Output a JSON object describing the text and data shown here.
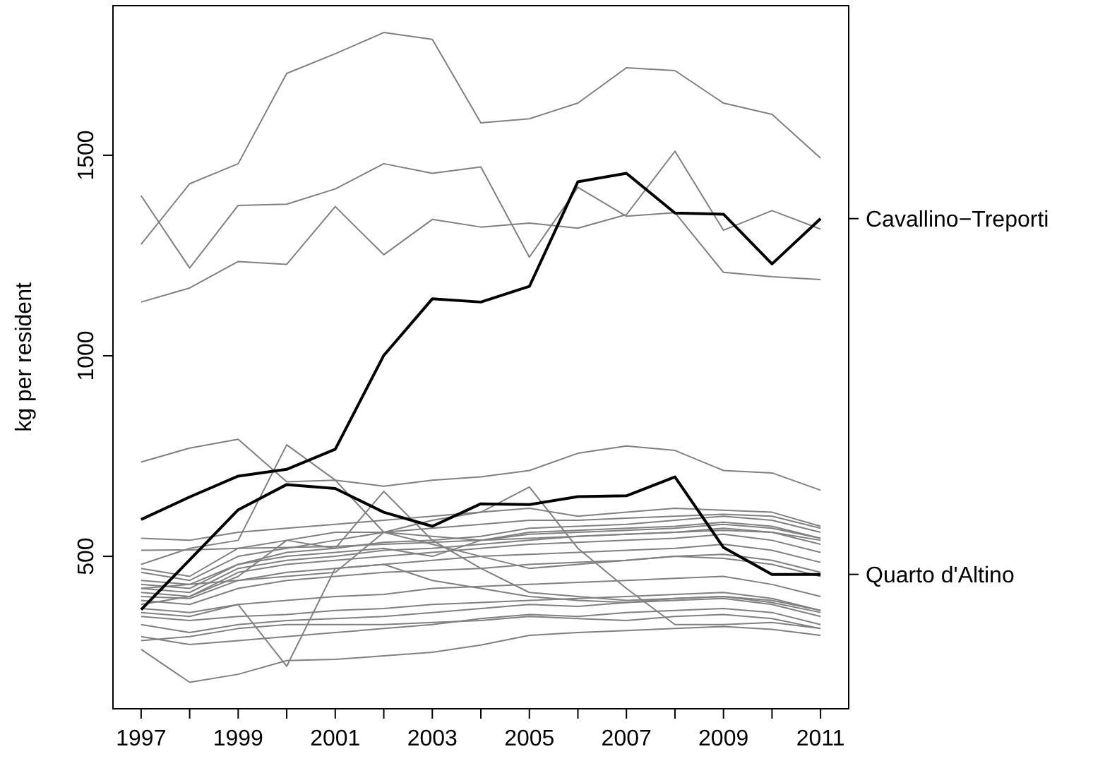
{
  "chart_data": {
    "type": "line",
    "ylabel": "kg per resident",
    "x": [
      1997,
      1998,
      1999,
      2000,
      2001,
      2002,
      2003,
      2004,
      2005,
      2006,
      2007,
      2008,
      2009,
      2010,
      2011
    ],
    "xlim": [
      1996.42,
      2011.58
    ],
    "ylim": [
      120,
      1873
    ],
    "xticks": [
      1997,
      {
        "value": 1998,
        "label": null
      },
      1999,
      {
        "value": 2000,
        "label": null
      },
      2001,
      {
        "value": 2002,
        "label": null
      },
      2003,
      {
        "value": 2004,
        "label": null
      },
      2005,
      {
        "value": 2006,
        "label": null
      },
      2007,
      {
        "value": 2008,
        "label": null
      },
      2009,
      {
        "value": 2010,
        "label": null
      },
      2011
    ],
    "yticks": [
      500,
      1000,
      1500
    ],
    "grid": false,
    "legend": "right",
    "marker": "none",
    "line_style": "solid",
    "series": [
      {
        "color": "#808080",
        "values": [
          1278,
          1429,
          1479,
          1704,
          1753,
          1806,
          1789,
          1581,
          1591,
          1630,
          1718,
          1711,
          1630,
          1602,
          1493
        ]
      },
      {
        "color": "#808080",
        "values": [
          1399,
          1219,
          1375,
          1378,
          1416,
          1479,
          1455,
          1471,
          1246,
          1420,
          1348,
          1357,
          1208,
          1197,
          1190
        ]
      },
      {
        "color": "#808080",
        "values": [
          1134,
          1169,
          1235,
          1228,
          1372,
          1252,
          1340,
          1321,
          1331,
          1318,
          1352,
          1510,
          1313,
          1362,
          1316
        ]
      },
      {
        "color": "#808080",
        "values": [
          735,
          770,
          792,
          686,
          690,
          675,
          690,
          698,
          714,
          757,
          775,
          764,
          714,
          708,
          665
        ]
      },
      {
        "color": "#808080",
        "values": [
          268,
          186,
          206,
          240,
          243,
          252,
          261,
          279,
          303,
          310,
          315,
          320,
          325,
          318,
          303
        ]
      },
      {
        "color": "#808080",
        "values": [
          300,
          280,
          290,
          300,
          310,
          320,
          330,
          345,
          355,
          350,
          360,
          365,
          370,
          360,
          330
        ]
      },
      {
        "color": "#808080",
        "values": [
          330,
          310,
          330,
          340,
          345,
          350,
          360,
          370,
          380,
          375,
          385,
          390,
          395,
          380,
          350
        ]
      },
      {
        "color": "#808080",
        "values": [
          350,
          340,
          350,
          355,
          365,
          370,
          380,
          385,
          390,
          395,
          400,
          405,
          410,
          395,
          365
        ]
      },
      {
        "color": "#808080",
        "values": [
          370,
          360,
          380,
          390,
          400,
          405,
          420,
          425,
          430,
          435,
          440,
          445,
          450,
          430,
          400
        ]
      },
      {
        "color": "#808080",
        "values": [
          390,
          380,
          420,
          440,
          450,
          460,
          465,
          470,
          480,
          485,
          490,
          500,
          505,
          490,
          460
        ]
      },
      {
        "color": "#808080",
        "values": [
          400,
          395,
          440,
          460,
          470,
          480,
          490,
          500,
          505,
          510,
          515,
          520,
          530,
          515,
          485
        ]
      },
      {
        "color": "#808080",
        "values": [
          410,
          400,
          460,
          480,
          490,
          500,
          510,
          520,
          530,
          535,
          540,
          545,
          555,
          540,
          510
        ]
      },
      {
        "color": "#808080",
        "values": [
          420,
          410,
          470,
          490,
          500,
          515,
          520,
          530,
          540,
          550,
          555,
          560,
          570,
          560,
          530
        ]
      },
      {
        "color": "#808080",
        "values": [
          430,
          420,
          480,
          500,
          510,
          520,
          500,
          540,
          560,
          565,
          570,
          575,
          585,
          575,
          545
        ]
      },
      {
        "color": "#808080",
        "values": [
          440,
          430,
          480,
          510,
          520,
          535,
          540,
          550,
          570,
          575,
          580,
          590,
          600,
          590,
          560
        ]
      },
      {
        "color": "#808080",
        "values": [
          460,
          440,
          500,
          520,
          540,
          560,
          570,
          580,
          590,
          590,
          595,
          600,
          605,
          600,
          570
        ]
      },
      {
        "color": "#808080",
        "values": [
          545,
          540,
          560,
          570,
          580,
          590,
          600,
          610,
          620,
          600,
          610,
          620,
          615,
          610,
          575
        ]
      },
      {
        "color": "#808080",
        "values": [
          515,
          516,
          520,
          522,
          525,
          530,
          535,
          540,
          545,
          550,
          555,
          560,
          565,
          560,
          540
        ]
      },
      {
        "color": "#808080",
        "values": [
          480,
          520,
          540,
          778,
          690,
          560,
          530,
          500,
          470,
          480,
          490,
          500,
          495,
          480,
          450
        ]
      },
      {
        "color": "#808080",
        "values": [
          380,
          400,
          450,
          540,
          520,
          662,
          540,
          470,
          410,
          400,
          390,
          395,
          400,
          385,
          360
        ]
      },
      {
        "color": "#808080",
        "values": [
          420,
          430,
          440,
          450,
          460,
          560,
          590,
          610,
          673,
          520,
          420,
          330,
          330,
          335,
          320
        ]
      },
      {
        "color": "#808080",
        "values": [
          360,
          350,
          380,
          226,
          470,
          480,
          440,
          420,
          400,
          390,
          385,
          395,
          400,
          390,
          365
        ]
      },
      {
        "color": "#808080",
        "values": [
          290,
          300,
          320,
          330,
          330,
          330,
          335,
          340,
          350,
          345,
          340,
          350,
          355,
          345,
          320
        ]
      },
      {
        "color": "#808080",
        "values": [
          470,
          450,
          520,
          540,
          560,
          560,
          550,
          540,
          555,
          560,
          565,
          570,
          580,
          570,
          545
        ]
      },
      {
        "name": "Cavallino−Treporti",
        "color": "#000000",
        "values": [
          592,
          648,
          700,
          717,
          767,
          1001,
          1142,
          1134,
          1173,
          1434,
          1455,
          1356,
          1353,
          1229,
          1342
        ]
      },
      {
        "name": "Quarto d'Altino",
        "color": "#000000",
        "values": [
          367,
          491,
          616,
          679,
          669,
          610,
          575,
          631,
          629,
          649,
          651,
          698,
          522,
          455,
          455
        ]
      }
    ]
  }
}
